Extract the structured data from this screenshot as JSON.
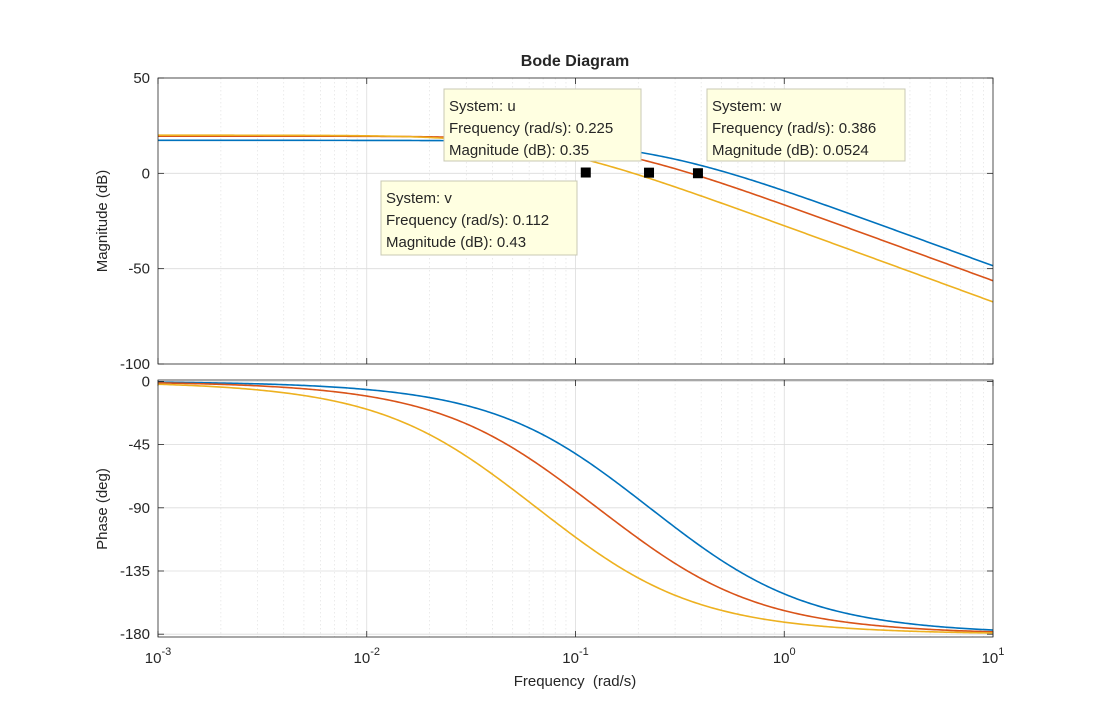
{
  "chart_data": {
    "type": "line",
    "title": "Bode Diagram",
    "xlabel": "Frequency  (rad/s)",
    "x_scale": "log",
    "xlim": [
      0.001,
      10
    ],
    "x_ticks": [
      {
        "base": "10",
        "exp": "-3"
      },
      {
        "base": "10",
        "exp": "-2"
      },
      {
        "base": "10",
        "exp": "-1"
      },
      {
        "base": "10",
        "exp": "0"
      },
      {
        "base": "10",
        "exp": "1"
      }
    ],
    "grid": true,
    "panels": [
      {
        "id": "magnitude",
        "ylabel": "Magnitude (dB)",
        "ylim": [
          -100,
          50
        ],
        "yticks": [
          "50",
          "0",
          "-50",
          "-100"
        ]
      },
      {
        "id": "phase",
        "ylabel": "Phase (deg)",
        "ylim": [
          -182,
          1
        ],
        "yticks": [
          "0",
          "-45",
          "-90",
          "-135",
          "-180"
        ]
      }
    ],
    "series": [
      {
        "id": "w",
        "color": "#0072BD",
        "dc_gain_db": 17.3,
        "pole1": 0.133,
        "pole2": 0.386
      },
      {
        "id": "u",
        "color": "#D95319",
        "dc_gain_db": 19.5,
        "pole1": 0.072,
        "pole2": 0.225
      },
      {
        "id": "v",
        "color": "#EDB120",
        "dc_gain_db": 20.0,
        "pole1": 0.038,
        "pole2": 0.112
      }
    ],
    "datatips": [
      {
        "series": "u",
        "freq": 0.225,
        "mag": 0.35,
        "lines": [
          "System: u",
          "Frequency (rad/s): 0.225",
          "Magnitude (dB): 0.35"
        ]
      },
      {
        "series": "v",
        "freq": 0.112,
        "mag": 0.43,
        "lines": [
          "System: v",
          "Frequency (rad/s): 0.112",
          "Magnitude (dB): 0.43"
        ]
      },
      {
        "series": "w",
        "freq": 0.386,
        "mag": 0.0524,
        "lines": [
          "System: w",
          "Frequency (rad/s): 0.386",
          "Magnitude (dB): 0.0524"
        ]
      }
    ]
  }
}
